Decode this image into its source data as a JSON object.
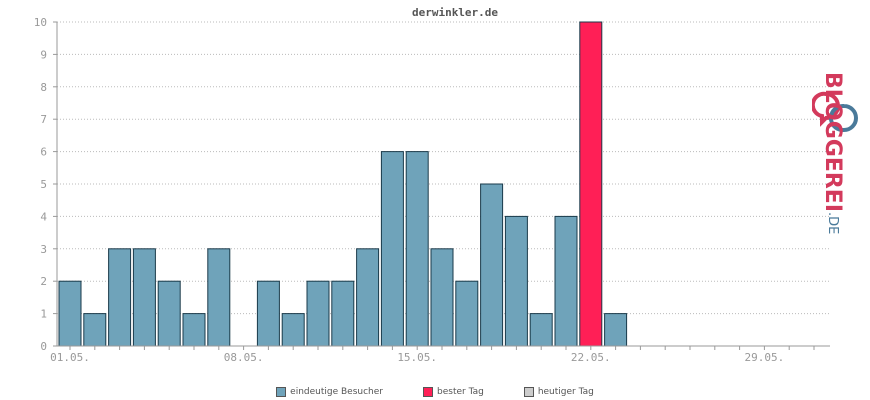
{
  "chart_data": {
    "type": "bar",
    "title": "derwinkler.de",
    "categories": [
      "01.05.",
      "02.05.",
      "03.05.",
      "04.05.",
      "05.05.",
      "06.05.",
      "07.05.",
      "08.05.",
      "09.05.",
      "10.05.",
      "11.05.",
      "12.05.",
      "13.05.",
      "14.05.",
      "15.05.",
      "16.05.",
      "17.05.",
      "18.05.",
      "19.05.",
      "20.05.",
      "21.05.",
      "22.05.",
      "23.05.",
      "24.05.",
      "25.05.",
      "26.05.",
      "27.05.",
      "28.05.",
      "29.05.",
      "30.05.",
      "31.05."
    ],
    "values": [
      2,
      1,
      3,
      3,
      2,
      1,
      3,
      0,
      2,
      1,
      2,
      2,
      3,
      6,
      6,
      3,
      2,
      5,
      4,
      1,
      4,
      10,
      1,
      0,
      0,
      0,
      0,
      0,
      0,
      0,
      0
    ],
    "best_day_index": 21,
    "xtick_labels": [
      "01.05.",
      "08.05.",
      "15.05.",
      "22.05.",
      "29.05."
    ],
    "xtick_indices": [
      0,
      7,
      14,
      21,
      28
    ],
    "ylim": [
      0,
      10
    ],
    "yticks": [
      0,
      1,
      2,
      3,
      4,
      5,
      6,
      7,
      8,
      9,
      10
    ],
    "grid": true,
    "colors": {
      "bar": "#6fa3ba",
      "best": "#ff1f56",
      "today": "#cccccc",
      "bar_border": "#1a3a4a"
    },
    "legend": {
      "position": "bottom",
      "items": [
        {
          "label": "eindeutige Besucher",
          "color": "#6fa3ba"
        },
        {
          "label": "bester Tag",
          "color": "#ff1f56"
        },
        {
          "label": "heutiger Tag",
          "color": "#cccccc"
        }
      ]
    }
  },
  "logo": {
    "text": "BLOGGEREI",
    "suffix": ".DE"
  }
}
